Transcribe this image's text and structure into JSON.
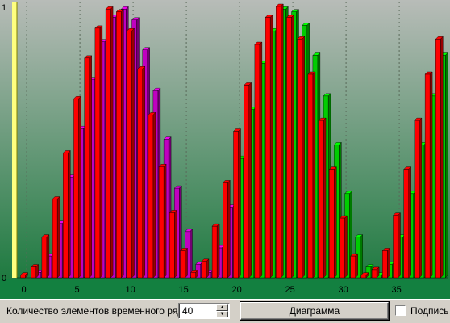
{
  "chart_data": {
    "type": "bar",
    "categories": [
      0,
      1,
      2,
      3,
      4,
      5,
      6,
      7,
      8,
      9,
      10,
      11,
      12,
      13,
      14,
      15,
      16,
      17,
      18,
      19,
      20,
      21,
      22,
      23,
      24,
      25,
      26,
      27,
      28,
      29,
      30,
      31,
      32,
      33,
      34,
      35,
      36,
      37,
      38,
      39
    ],
    "series": [
      {
        "values": [
          0.01,
          0.04,
          0.15,
          0.29,
          0.46,
          0.66,
          0.81,
          0.92,
          0.99,
          0.98,
          0.91,
          0.77,
          0.6,
          0.41,
          0.24,
          0.1,
          0.02,
          0.06,
          0.19,
          0.35,
          0.54,
          0.71,
          0.86,
          0.96,
          1.0,
          0.96,
          0.88,
          0.75,
          0.58,
          0.4,
          0.22,
          0.08,
          0.01,
          0.03,
          0.1,
          0.23,
          0.4,
          0.58,
          0.75,
          0.88
        ],
        "colors": [
          "#ff0000",
          "#ff0000",
          "#ff0000",
          "#ff0000",
          "#ff0000",
          "#ff0000",
          "#ff0000",
          "#ff0000",
          "#ff0000",
          "#ff0000",
          "#ff0000",
          "#ff0000",
          "#ff0000",
          "#ff0000",
          "#ff0000",
          "#ff0000",
          "#ff0000",
          "#ff0000",
          "#ff0000",
          "#ff0000",
          "#ff0000",
          "#ff0000",
          "#ff0000",
          "#ff0000",
          "#ff0000",
          "#ff0000",
          "#ff0000",
          "#ff0000",
          "#ff0000",
          "#ff0000",
          "#ff0000",
          "#ff0000",
          "#ff0000",
          "#ff0000",
          "#ff0000",
          "#ff0000",
          "#ff0000",
          "#ff0000",
          "#ff0000",
          "#ff0000"
        ]
      },
      {
        "values": [
          0.0,
          0.02,
          0.08,
          0.2,
          0.37,
          0.55,
          0.73,
          0.87,
          0.96,
          0.99,
          0.95,
          0.84,
          0.69,
          0.51,
          0.33,
          0.17,
          0.05,
          0.02,
          0.11,
          0.26,
          0.44,
          0.62,
          0.79,
          0.91,
          0.99,
          0.98,
          0.93,
          0.82,
          0.67,
          0.49,
          0.31,
          0.15,
          0.04,
          0.01,
          0.05,
          0.15,
          0.31,
          0.49,
          0.67,
          0.82
        ],
        "colors": [
          "#c000c0",
          "#c000c0",
          "#c000c0",
          "#c000c0",
          "#c000c0",
          "#c000c0",
          "#c000c0",
          "#c000c0",
          "#c000c0",
          "#c000c0",
          "#c000c0",
          "#c000c0",
          "#c000c0",
          "#c000c0",
          "#c000c0",
          "#c000c0",
          "#c000c0",
          "#c000c0",
          "#c000c0",
          "#c000c0",
          "#00cc00",
          "#00cc00",
          "#00cc00",
          "#00cc00",
          "#00cc00",
          "#00cc00",
          "#00cc00",
          "#00cc00",
          "#00cc00",
          "#00cc00",
          "#00cc00",
          "#00cc00",
          "#00cc00",
          "#00cc00",
          "#00cc00",
          "#00cc00",
          "#00cc00",
          "#00cc00",
          "#00cc00",
          "#00cc00"
        ]
      }
    ],
    "x_ticks": [
      "0",
      "5",
      "10",
      "15",
      "20",
      "25",
      "30",
      "35"
    ],
    "x_tick_values": [
      0,
      5,
      10,
      15,
      20,
      25,
      30,
      35
    ],
    "y_ticks": [
      "0",
      "1"
    ],
    "ylim": [
      0,
      1
    ],
    "xlim": [
      -0.5,
      39.5
    ],
    "grid": "vertical dotted",
    "title": "",
    "xlabel": "",
    "ylabel": "",
    "background_top": "#b8bcb8",
    "background_bottom": "#1e7a40",
    "axis_band_color": "#138040",
    "wall_color": "#ffff80"
  },
  "controls": {
    "count_label": "Количество элементов временного ряда",
    "count_value": "40",
    "diagram_button": "Диаграмма",
    "caption_label": "Подпись"
  }
}
